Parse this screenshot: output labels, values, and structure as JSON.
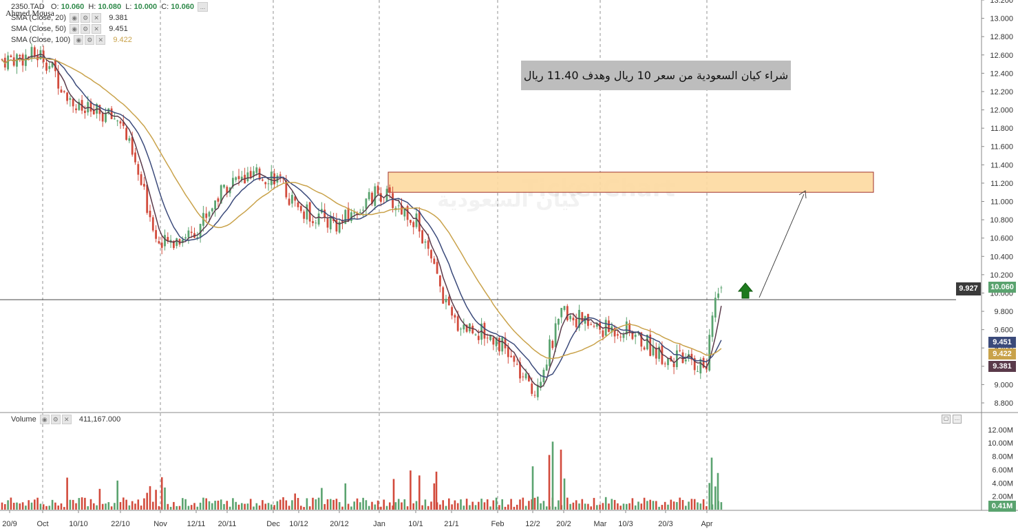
{
  "header": {
    "symbol": "2350.TAD",
    "o_label": "O:",
    "o_value": "10.060",
    "h_label": "H:",
    "h_value": "10.080",
    "l_label": "L:",
    "l_value": "10.000",
    "c_label": "C:",
    "c_value": "10.060",
    "author": "Ahmed Mousa",
    "more": "..."
  },
  "indicators": [
    {
      "label": "SMA (Close, 20)",
      "value": "9.381",
      "color": "#5a3a4a"
    },
    {
      "label": "SMA (Close, 50)",
      "value": "9.451",
      "color": "#3b4a7a"
    },
    {
      "label": "SMA (Close, 100)",
      "value": "9.422",
      "color": "#c9a24a"
    }
  ],
  "annotation": "شراء كيان السعودية من سعر 10 ريال وهدف 11.40 ريال",
  "watermark": "TickerChart",
  "watermark_ar": "كيان السعودية",
  "volume_panel": {
    "label": "Volume",
    "value": "411,167.000"
  },
  "price_tags": {
    "last": "10.060",
    "sma50": "9.451",
    "sma100": "9.422",
    "sma20": "9.381",
    "crosshair": "9.927",
    "volume": "0.41M"
  },
  "colors": {
    "up": "#5aa36f",
    "down": "#d24b3c",
    "sma20": "#5a3a4a",
    "sma50": "#3b4a7a",
    "sma100": "#c9a24a",
    "zone_fill": "#fdd9a0",
    "zone_border": "#a0302a",
    "arrow": "#1e7a1e"
  },
  "chart_data": {
    "type": "candlestick",
    "price_axis_ticks": [
      "13.200",
      "13.000",
      "12.800",
      "12.600",
      "12.400",
      "12.200",
      "12.000",
      "11.800",
      "11.600",
      "11.400",
      "11.200",
      "11.000",
      "10.800",
      "10.600",
      "10.400",
      "10.200",
      "10.000",
      "9.800",
      "9.600",
      "9.400",
      "9.200",
      "9.000",
      "8.800"
    ],
    "volume_axis_ticks": [
      "12.00M",
      "10.00M",
      "8.00M",
      "6.00M",
      "4.00M",
      "2.00M"
    ],
    "x_labels": [
      "20/9",
      "Oct",
      "10/10",
      "22/10",
      "Nov",
      "12/11",
      "20/11",
      "Dec",
      "10/12",
      "20/12",
      "Jan",
      "10/1",
      "21/1",
      "Feb",
      "12/2",
      "20/2",
      "Mar",
      "10/3",
      "20/3",
      "Apr"
    ],
    "ylim": [
      8.75,
      13.2
    ],
    "close_trace": [
      [
        "20/9",
        12.55
      ],
      [
        "Oct",
        12.6
      ],
      [
        "10/10",
        12.0
      ],
      [
        "22/10",
        11.9
      ],
      [
        "Nov",
        10.5
      ],
      [
        "12/11",
        10.7
      ],
      [
        "20/11",
        11.2
      ],
      [
        "Dec",
        11.3
      ],
      [
        "10/12",
        10.9
      ],
      [
        "20/12",
        10.75
      ],
      [
        "Jan",
        11.1
      ],
      [
        "10/1",
        10.8
      ],
      [
        "21/1",
        9.7
      ],
      [
        "Feb",
        9.5
      ],
      [
        "12/2",
        8.9
      ],
      [
        "20/2",
        9.8
      ],
      [
        "Mar",
        9.6
      ],
      [
        "10/3",
        9.6
      ],
      [
        "20/3",
        9.3
      ],
      [
        "Apr",
        9.2
      ],
      [
        "Apr",
        10.06
      ]
    ],
    "resistance_zone": {
      "from": 11.1,
      "to": 11.32
    },
    "last_close": 10.06,
    "crosshair_price": 9.927
  }
}
